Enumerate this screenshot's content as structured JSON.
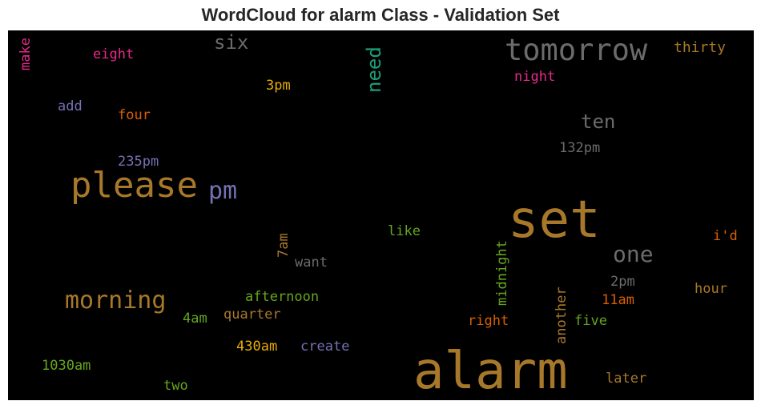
{
  "title": "WordCloud for alarm Class - Validation Set",
  "words": [
    {
      "text": "alarm",
      "color": "#a8782a"
    },
    {
      "text": "set",
      "color": "#a8782a"
    },
    {
      "text": "tomorrow",
      "color": "#6b6b6b"
    },
    {
      "text": "please",
      "color": "#a8782a"
    },
    {
      "text": "pm",
      "color": "#7570b3"
    },
    {
      "text": "morning",
      "color": "#a8782a"
    },
    {
      "text": "one",
      "color": "#6b6b6b"
    },
    {
      "text": "ten",
      "color": "#6b6b6b"
    },
    {
      "text": "six",
      "color": "#6b6b6b"
    },
    {
      "text": "need",
      "color": "#1b9e77"
    },
    {
      "text": "thirty",
      "color": "#a8782a"
    },
    {
      "text": "make",
      "color": "#e7298a"
    },
    {
      "text": "eight",
      "color": "#e7298a"
    },
    {
      "text": "night",
      "color": "#e7298a"
    },
    {
      "text": "3pm",
      "color": "#e6ab02"
    },
    {
      "text": "add",
      "color": "#7570b3"
    },
    {
      "text": "four",
      "color": "#d95f02"
    },
    {
      "text": "132pm",
      "color": "#6b6b6b"
    },
    {
      "text": "235pm",
      "color": "#7570b3"
    },
    {
      "text": "like",
      "color": "#66a61e"
    },
    {
      "text": "i'd",
      "color": "#d95f02"
    },
    {
      "text": "7am",
      "color": "#a8782a"
    },
    {
      "text": "want",
      "color": "#6b6b6b"
    },
    {
      "text": "midnight",
      "color": "#66a61e"
    },
    {
      "text": "2pm",
      "color": "#6b6b6b"
    },
    {
      "text": "hour",
      "color": "#a8782a"
    },
    {
      "text": "afternoon",
      "color": "#66a61e"
    },
    {
      "text": "11am",
      "color": "#d95f02"
    },
    {
      "text": "4am",
      "color": "#66a61e"
    },
    {
      "text": "quarter",
      "color": "#a8782a"
    },
    {
      "text": "another",
      "color": "#a8782a"
    },
    {
      "text": "right",
      "color": "#d95f02"
    },
    {
      "text": "five",
      "color": "#66a61e"
    },
    {
      "text": "430am",
      "color": "#e6ab02"
    },
    {
      "text": "create",
      "color": "#7570b3"
    },
    {
      "text": "1030am",
      "color": "#66a61e"
    },
    {
      "text": "later",
      "color": "#a8782a"
    },
    {
      "text": "two",
      "color": "#66a61e"
    }
  ]
}
